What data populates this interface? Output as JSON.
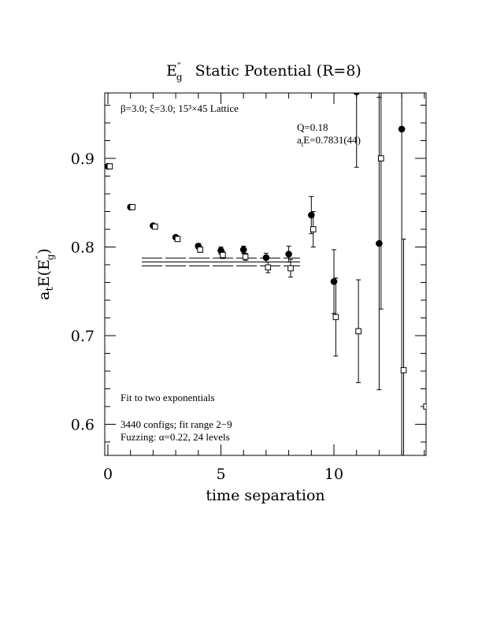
{
  "chart_data": {
    "type": "scatter",
    "title": "E″g  Static Potential (R=8)",
    "title_main": "E",
    "title_prime": "″",
    "title_sub": "g",
    "title_rest": "Static Potential (R=8)",
    "xlabel": "time separation",
    "ylabel": "a",
    "ylabel_sub_t": "t",
    "ylabel_mid": "E(E",
    "ylabel_prime": "″",
    "ylabel_sub_g": "g",
    "ylabel_end": ")",
    "xlim": [
      0,
      14
    ],
    "ylim": [
      0.565,
      0.975
    ],
    "x_ticks": [
      0,
      5,
      10
    ],
    "x_tick_labels": [
      "0",
      "5",
      "10"
    ],
    "y_ticks": [
      0.6,
      0.7,
      0.8,
      0.9
    ],
    "y_tick_labels": [
      "0.6",
      "0.7",
      "0.8",
      "0.9"
    ],
    "annotations": {
      "lattice": "β=3.0; ξ=3.0; 15³×45 Lattice",
      "q": "Q=0.18",
      "energy_prefix": "a",
      "energy_sub": "t",
      "energy_rest": "E=0.7831(44)",
      "fit": "Fit to two exponentials",
      "configs": "3440 configs; fit range 2−9",
      "fuzzing": "Fuzzing: α=0.22, 24 levels"
    },
    "fit": {
      "value": 0.7831,
      "error": 0.0044,
      "x_range": [
        1.5,
        8.5
      ]
    },
    "series": [
      {
        "marker": "filled-circle",
        "points": [
          {
            "x": 0,
            "y": 0.891,
            "err": 0.001
          },
          {
            "x": 1,
            "y": 0.845,
            "err": 0.001
          },
          {
            "x": 2,
            "y": 0.824,
            "err": 0.002
          },
          {
            "x": 3,
            "y": 0.811,
            "err": 0.002
          },
          {
            "x": 4,
            "y": 0.801,
            "err": 0.003
          },
          {
            "x": 5,
            "y": 0.796,
            "err": 0.004
          },
          {
            "x": 6,
            "y": 0.797,
            "err": 0.004
          },
          {
            "x": 7,
            "y": 0.788,
            "err": 0.005
          },
          {
            "x": 8,
            "y": 0.792,
            "err": 0.009
          },
          {
            "x": 9,
            "y": 0.836,
            "err": 0.021
          },
          {
            "x": 10,
            "y": 0.761,
            "err": 0.036
          },
          {
            "x": 11,
            "y": 0.975,
            "err": 0.085
          },
          {
            "x": 12,
            "y": 0.804,
            "err": 0.165
          },
          {
            "x": 13,
            "y": 0.933,
            "err": 0.37
          }
        ]
      },
      {
        "marker": "open-square",
        "points": [
          {
            "x": 0,
            "y": 0.891,
            "err": 0.001
          },
          {
            "x": 1,
            "y": 0.845,
            "err": 0.001
          },
          {
            "x": 2,
            "y": 0.823,
            "err": 0.002
          },
          {
            "x": 3,
            "y": 0.809,
            "err": 0.002
          },
          {
            "x": 4,
            "y": 0.797,
            "err": 0.003
          },
          {
            "x": 5,
            "y": 0.791,
            "err": 0.004
          },
          {
            "x": 6,
            "y": 0.789,
            "err": 0.004
          },
          {
            "x": 7,
            "y": 0.777,
            "err": 0.006
          },
          {
            "x": 8,
            "y": 0.776,
            "err": 0.01
          },
          {
            "x": 9,
            "y": 0.82,
            "err": 0.02
          },
          {
            "x": 10,
            "y": 0.721,
            "err": 0.044
          },
          {
            "x": 11,
            "y": 0.705,
            "err": 0.058
          },
          {
            "x": 12,
            "y": 0.9,
            "err": 0.17
          },
          {
            "x": 13,
            "y": 0.661,
            "err": 0.148
          },
          {
            "x": 14,
            "y": 0.62,
            "err": 0.2
          }
        ]
      }
    ]
  }
}
